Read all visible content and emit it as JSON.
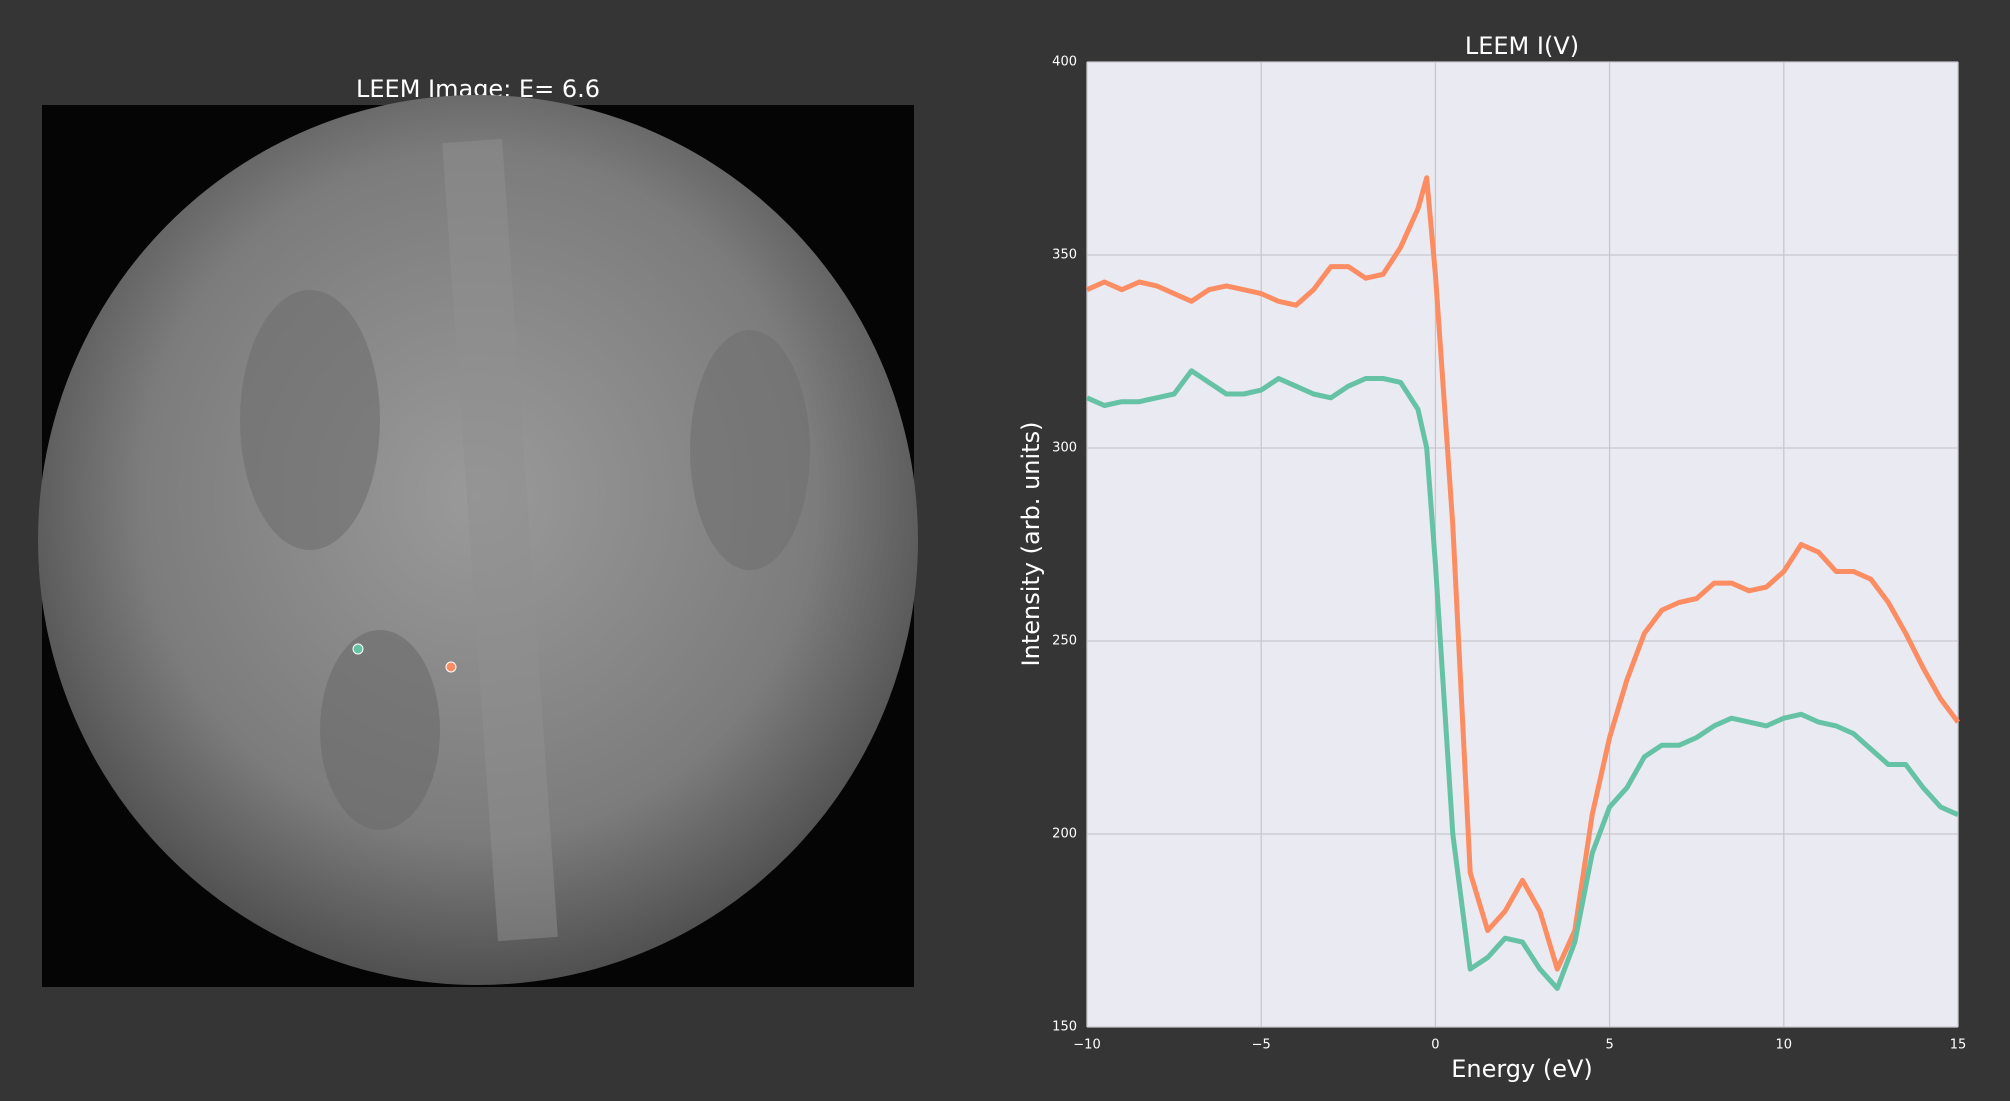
{
  "image_title": "LEEM Image: E= 6.6",
  "chart_data": {
    "type": "line",
    "title": "LEEM I(V)",
    "xlabel": "Energy (eV)",
    "ylabel": "Intensity (arb. units)",
    "x": [
      -10,
      -9.5,
      -9,
      -8.5,
      -8,
      -7.5,
      -7,
      -6.5,
      -6,
      -5.5,
      -5,
      -4.5,
      -4,
      -3.5,
      -3,
      -2.5,
      -2,
      -1.5,
      -1,
      -0.5,
      -0.25,
      0,
      0.5,
      1,
      1.5,
      2,
      2.5,
      3,
      3.5,
      4,
      4.5,
      5,
      5.5,
      6,
      6.5,
      7,
      7.5,
      8,
      8.5,
      9,
      9.5,
      10,
      10.5,
      11,
      11.5,
      12,
      12.5,
      13,
      13.5,
      14,
      14.5,
      15
    ],
    "series": [
      {
        "color": "#fc8d62",
        "values": [
          341,
          343,
          341,
          343,
          342,
          340,
          338,
          341,
          342,
          341,
          340,
          338,
          337,
          341,
          347,
          347,
          344,
          345,
          352,
          362,
          370,
          345,
          280,
          190,
          175,
          180,
          188,
          180,
          165,
          175,
          205,
          225,
          240,
          252,
          258,
          260,
          261,
          265,
          265,
          263,
          264,
          268,
          275,
          273,
          268,
          268,
          266,
          260,
          252,
          243,
          235,
          229
        ]
      },
      {
        "color": "#66c2a5",
        "values": [
          313,
          311,
          312,
          312,
          313,
          314,
          320,
          317,
          314,
          314,
          315,
          318,
          316,
          314,
          313,
          316,
          318,
          318,
          317,
          310,
          300,
          270,
          200,
          165,
          168,
          173,
          172,
          165,
          160,
          172,
          195,
          207,
          212,
          220,
          223,
          223,
          225,
          228,
          230,
          229,
          228,
          230,
          231,
          229,
          228,
          226,
          222,
          218,
          218,
          212,
          207,
          205
        ]
      }
    ],
    "xlim": [
      -10,
      15
    ],
    "ylim": [
      150,
      400
    ],
    "xticks": [
      {
        "value": -10,
        "label": "−10"
      },
      {
        "value": -5,
        "label": "−5"
      },
      0,
      5,
      10,
      15
    ],
    "yticks": [
      150,
      200,
      250,
      300,
      350,
      400
    ],
    "grid": true
  }
}
